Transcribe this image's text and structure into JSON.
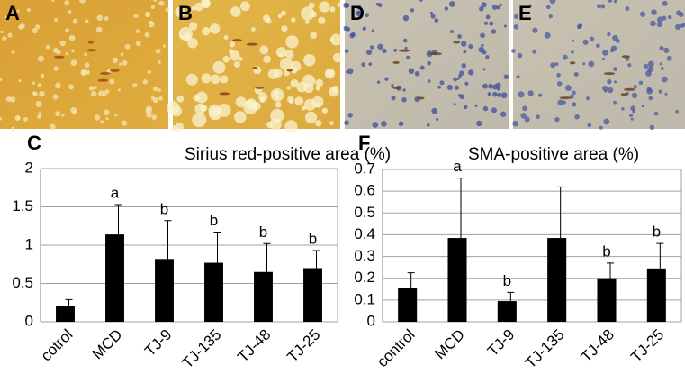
{
  "panels": [
    {
      "label": "A"
    },
    {
      "label": "B"
    },
    {
      "label": "D"
    },
    {
      "label": "E"
    }
  ],
  "chart_data": [
    {
      "type": "bar",
      "label": "C",
      "title": "Sirius red-positive area (%)",
      "categories": [
        "cotrol",
        "MCD",
        "TJ-9",
        "TJ-135",
        "TJ-48",
        "TJ-25"
      ],
      "values": [
        0.21,
        1.14,
        0.82,
        0.77,
        0.65,
        0.7
      ],
      "errors": [
        0.08,
        0.39,
        0.5,
        0.4,
        0.37,
        0.23
      ],
      "annotations": [
        null,
        "a",
        "b",
        "b",
        "b",
        "b"
      ],
      "color": "#000000",
      "ylim": [
        0,
        2
      ],
      "yticks": [
        0,
        0.5,
        1,
        1.5,
        2
      ],
      "grid": true
    },
    {
      "type": "bar",
      "label": "F",
      "title": "SMA-positive area (%)",
      "categories": [
        "control",
        "MCD",
        "TJ-9",
        "TJ-135",
        "TJ-48",
        "TJ-25"
      ],
      "values": [
        0.155,
        0.385,
        0.095,
        0.385,
        0.2,
        0.245
      ],
      "errors": [
        0.07,
        0.275,
        0.04,
        0.235,
        0.07,
        0.115
      ],
      "annotations": [
        null,
        "a",
        "b",
        null,
        "b",
        "b"
      ],
      "color": "#000000",
      "ylim": [
        0,
        0.7
      ],
      "yticks": [
        0,
        0.1,
        0.2,
        0.3,
        0.4,
        0.5,
        0.6,
        0.7
      ],
      "grid": true
    }
  ]
}
